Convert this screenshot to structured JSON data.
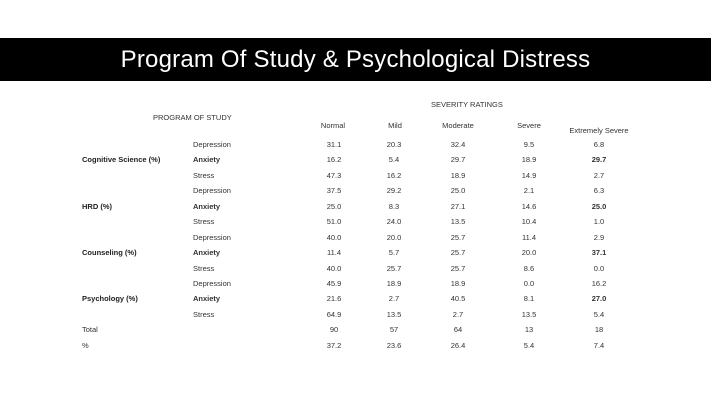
{
  "title": "Program Of Study & Psychological Distress",
  "headers": {
    "program": "PROGRAM OF STUDY",
    "severity": "SEVERITY RATINGS",
    "columns": [
      "Normal",
      "Mild",
      "Moderate",
      "Severe",
      "Extremely Severe"
    ]
  },
  "rows": [
    {
      "group": "",
      "measure": "Depression",
      "bold": false,
      "values": [
        "31.1",
        "20.3",
        "32.4",
        "9.5",
        "6.8"
      ]
    },
    {
      "group": "Cognitive Science (%)",
      "measure": "Anxiety",
      "bold": true,
      "values": [
        "16.2",
        "5.4",
        "29.7",
        "18.9",
        "29.7"
      ]
    },
    {
      "group": "",
      "measure": "Stress",
      "bold": false,
      "values": [
        "47.3",
        "16.2",
        "18.9",
        "14.9",
        "2.7"
      ]
    },
    {
      "group": "",
      "measure": "Depression",
      "bold": false,
      "values": [
        "37.5",
        "29.2",
        "25.0",
        "2.1",
        "6.3"
      ]
    },
    {
      "group": "HRD (%)",
      "measure": "Anxiety",
      "bold": true,
      "values": [
        "25.0",
        "8.3",
        "27.1",
        "14.6",
        "25.0"
      ]
    },
    {
      "group": "",
      "measure": "Stress",
      "bold": false,
      "values": [
        "51.0",
        "24.0",
        "13.5",
        "10.4",
        "1.0"
      ]
    },
    {
      "group": "",
      "measure": "Depression",
      "bold": false,
      "values": [
        "40.0",
        "20.0",
        "25.7",
        "11.4",
        "2.9"
      ]
    },
    {
      "group": "Counseling (%)",
      "measure": "Anxiety",
      "bold": true,
      "values": [
        "11.4",
        "5.7",
        "25.7",
        "20.0",
        "37.1"
      ]
    },
    {
      "group": "",
      "measure": "Stress",
      "bold": false,
      "values": [
        "40.0",
        "25.7",
        "25.7",
        "8.6",
        "0.0"
      ]
    },
    {
      "group": "",
      "measure": "Depression",
      "bold": false,
      "values": [
        "45.9",
        "18.9",
        "18.9",
        "0.0",
        "16.2"
      ]
    },
    {
      "group": "Psychology (%)",
      "measure": "Anxiety",
      "bold": true,
      "values": [
        "21.6",
        "2.7",
        "40.5",
        "8.1",
        "27.0"
      ]
    },
    {
      "group": "",
      "measure": "Stress",
      "bold": false,
      "values": [
        "64.9",
        "13.5",
        "2.7",
        "13.5",
        "5.4"
      ]
    }
  ],
  "totals": [
    {
      "label": "Total",
      "values": [
        "90",
        "57",
        "64",
        "13",
        "18"
      ]
    },
    {
      "label": "%",
      "values": [
        "37.2",
        "23.6",
        "26.4",
        "5.4",
        "7.4"
      ]
    }
  ]
}
